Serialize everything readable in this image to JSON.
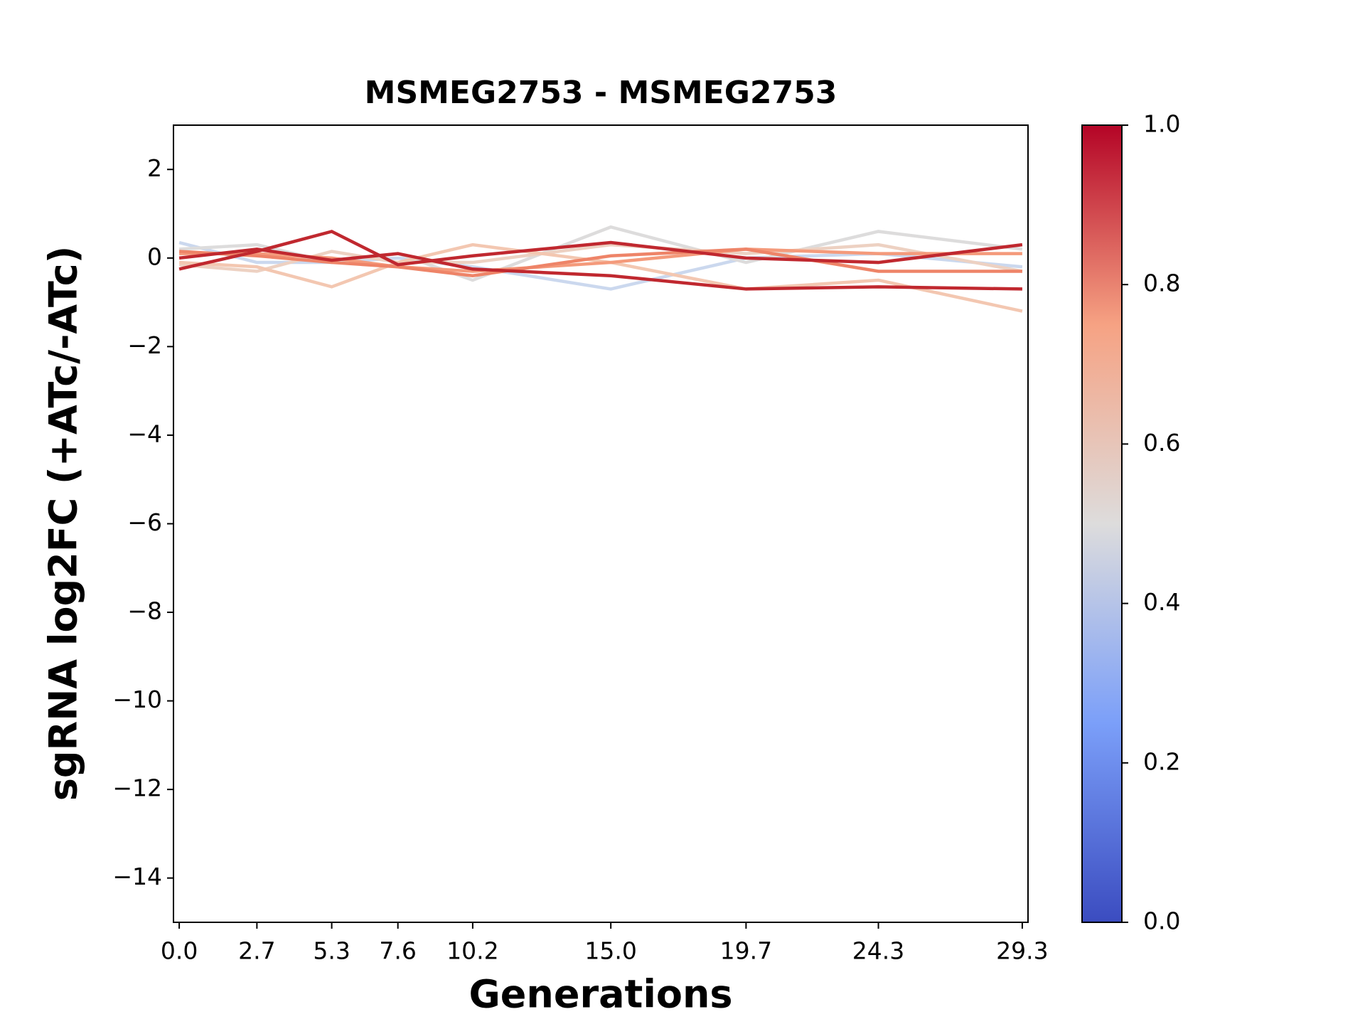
{
  "chart_data": {
    "type": "line",
    "title": "MSMEG2753 - MSMEG2753",
    "xlabel": "Generations",
    "ylabel": "sgRNA log2FC (+ATc/-ATc)",
    "x": [
      0.0,
      2.7,
      5.3,
      7.6,
      10.2,
      15.0,
      19.7,
      24.3,
      29.3
    ],
    "xlim": [
      -0.2,
      29.5
    ],
    "xticks": [
      {
        "value": 0.0,
        "label": "0.0"
      },
      2.7,
      5.3,
      7.6,
      10.2,
      {
        "value": 15.0,
        "label": "15.0"
      },
      19.7,
      24.3,
      29.3
    ],
    "ylim": [
      -15,
      3
    ],
    "yticks": [
      {
        "value": -14,
        "label": "−14"
      },
      {
        "value": -12,
        "label": "−12"
      },
      {
        "value": -10,
        "label": "−10"
      },
      {
        "value": -8,
        "label": "−8"
      },
      {
        "value": -6,
        "label": "−6"
      },
      {
        "value": -4,
        "label": "−4"
      },
      {
        "value": -2,
        "label": "−2"
      },
      0,
      2
    ],
    "grid": false,
    "series": [
      {
        "color": "#cbd8ee",
        "values": [
          0.35,
          -0.1,
          -0.1,
          0.0,
          -0.2,
          -0.7,
          0.0,
          0.1,
          -0.2
        ]
      },
      {
        "color": "#dddcdc",
        "values": [
          0.2,
          0.3,
          -0.1,
          0.1,
          -0.5,
          0.7,
          -0.1,
          0.6,
          0.2
        ]
      },
      {
        "color": "#edd1c2",
        "values": [
          -0.15,
          -0.3,
          0.15,
          -0.1,
          -0.1,
          0.3,
          0.1,
          0.3,
          -0.3
        ]
      },
      {
        "color": "#f3c7b1",
        "values": [
          -0.1,
          -0.2,
          -0.65,
          -0.1,
          0.3,
          -0.1,
          -0.7,
          -0.5,
          -1.2
        ]
      },
      {
        "color": "#f49a7b",
        "values": [
          0.1,
          0.1,
          0.0,
          -0.2,
          -0.3,
          -0.1,
          0.2,
          0.1,
          0.1
        ]
      },
      {
        "color": "#ee8468",
        "values": [
          0.15,
          0.05,
          -0.1,
          -0.2,
          -0.4,
          0.05,
          0.2,
          -0.3,
          -0.3
        ]
      },
      {
        "color": "#c0282f",
        "values": [
          0.0,
          0.2,
          -0.05,
          0.1,
          -0.25,
          -0.4,
          -0.7,
          -0.65,
          -0.7
        ]
      },
      {
        "color": "#c0282f",
        "values": [
          -0.25,
          0.15,
          0.6,
          -0.15,
          0.05,
          0.35,
          0.0,
          -0.1,
          0.3
        ]
      }
    ],
    "colorbar": {
      "lim": [
        0,
        1
      ],
      "ticks": [
        {
          "value": 0.0,
          "label": "0.0"
        },
        0.2,
        0.4,
        0.6,
        0.8,
        {
          "value": 1.0,
          "label": "1.0"
        }
      ],
      "colors": [
        "#3b4cc0",
        "#7b9ff9",
        "#dddcdc",
        "#f6a283",
        "#b40426"
      ]
    }
  }
}
